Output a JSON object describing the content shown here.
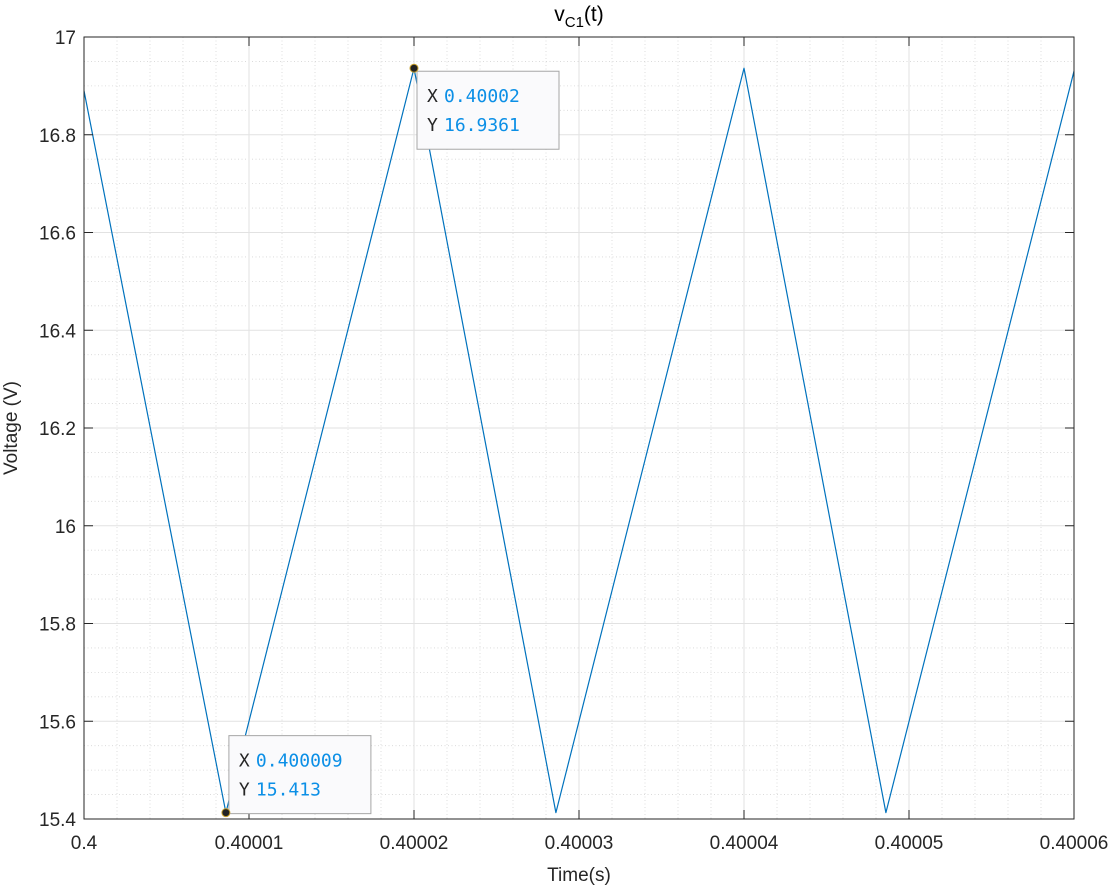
{
  "chart_data": {
    "type": "line",
    "title_main": "v",
    "title_sub": "C1",
    "title_tail": "(t)",
    "xlabel": "Time(s)",
    "ylabel": "Voltage (V)",
    "xlim": [
      0.4,
      0.40006
    ],
    "ylim": [
      15.4,
      17
    ],
    "grid": true,
    "minor_grid": true,
    "x_ticks": [
      0.4,
      0.40001,
      0.40002,
      0.40003,
      0.40004,
      0.40005,
      0.40006
    ],
    "x_tick_labels": [
      "0.4",
      "0.40001",
      "0.40002",
      "0.40003",
      "0.40004",
      "0.40005",
      "0.40006"
    ],
    "y_ticks": [
      15.4,
      15.6,
      15.8,
      16,
      16.2,
      16.4,
      16.6,
      16.8,
      17
    ],
    "y_tick_labels": [
      "15.4",
      "15.6",
      "15.8",
      "16",
      "16.2",
      "16.4",
      "16.6",
      "16.8",
      "17"
    ],
    "series": [
      {
        "color": "#0072bd",
        "x": [
          0.4,
          0.4000086,
          0.40002,
          0.4000286,
          0.40004,
          0.4000486,
          0.40006
        ],
        "y": [
          16.89,
          15.413,
          16.9361,
          15.413,
          16.9361,
          15.413,
          16.93
        ]
      }
    ],
    "datatips": [
      {
        "x_value": 0.40002,
        "y_value": 16.9361,
        "x_key": "X",
        "y_key": "Y",
        "x_text": "0.40002",
        "y_text": "16.9361"
      },
      {
        "x_value": 0.4000086,
        "y_value": 15.413,
        "x_key": "X",
        "y_key": "Y",
        "x_text": "0.400009",
        "y_text": "15.413"
      }
    ]
  }
}
